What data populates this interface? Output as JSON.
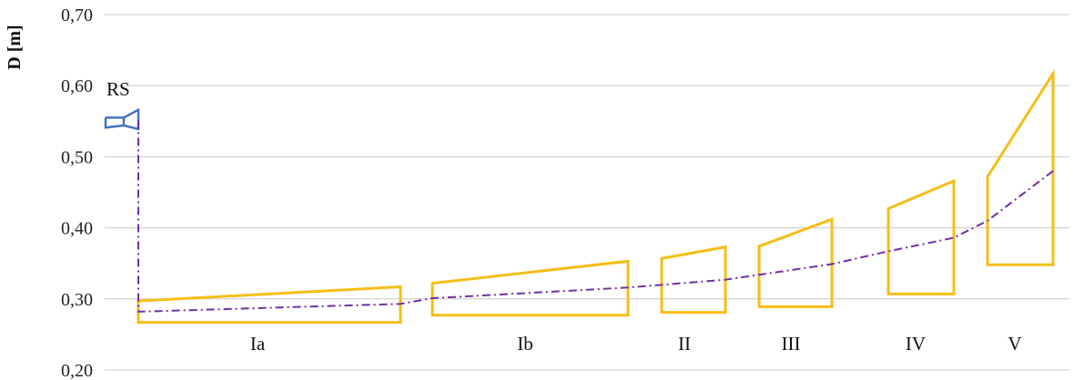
{
  "chart_data": {
    "type": "line",
    "title": "",
    "xlabel": "",
    "ylabel": "D [m]",
    "ylim": [
      0.2,
      0.7
    ],
    "y_ticks": [
      "0,20",
      "0,30",
      "0,40",
      "0,50",
      "0,60",
      "0,70"
    ],
    "grid": true,
    "colors": {
      "zones": "#f5be16",
      "rs": "#4472c4",
      "trend": "#7030a0",
      "grid": "#c8c8c8"
    },
    "rs_label": "RS",
    "rs_box": {
      "y_bottom": 0.539,
      "y_top": 0.566,
      "y_mid": 0.551
    },
    "zones": [
      {
        "label": "Ia",
        "y_left_top": 0.297,
        "y_right_top": 0.317,
        "y_bottom": 0.267
      },
      {
        "label": "Ib",
        "y_left_top": 0.322,
        "y_right_top": 0.353,
        "y_bottom": 0.277
      },
      {
        "label": "II",
        "y_left_top": 0.357,
        "y_right_top": 0.373,
        "y_bottom": 0.281
      },
      {
        "label": "III",
        "y_left_top": 0.374,
        "y_right_top": 0.412,
        "y_bottom": 0.289
      },
      {
        "label": "IV",
        "y_left_top": 0.427,
        "y_right_top": 0.466,
        "y_bottom": 0.307
      },
      {
        "label": "V",
        "y_left_top": 0.472,
        "y_right_top": 0.617,
        "y_bottom": 0.348
      }
    ],
    "trend_line": [
      0.551,
      0.282,
      0.293,
      0.301,
      0.316,
      0.327,
      0.349,
      0.367,
      0.386,
      0.41,
      0.48
    ]
  }
}
